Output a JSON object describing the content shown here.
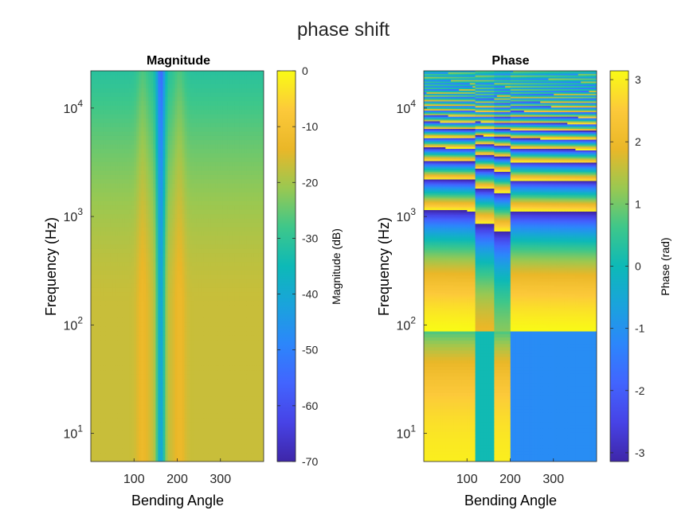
{
  "figure": {
    "title": "phase shift"
  },
  "chart_data": [
    {
      "type": "heatmap",
      "title": "Magnitude",
      "xlabel": "Bending Angle",
      "ylabel": "Frequency (Hz)",
      "x_ticks": [
        100,
        200,
        300
      ],
      "xlim": [
        0,
        400
      ],
      "y_scale": "log",
      "y_ticks": [
        {
          "base": "10",
          "exp": "1"
        },
        {
          "base": "10",
          "exp": "2"
        },
        {
          "base": "10",
          "exp": "3"
        },
        {
          "base": "10",
          "exp": "4"
        }
      ],
      "ylim": [
        5.5,
        22050
      ],
      "colorbar": {
        "label": "Magnitude (dB)",
        "range": [
          -70,
          0
        ],
        "ticks": [
          0,
          -10,
          -20,
          -30,
          -40,
          -50,
          -60,
          -70
        ]
      },
      "colormap": "parula",
      "features": {
        "notch_angles": [
          160
        ],
        "peak_angles": [
          120,
          200
        ],
        "description_level_db": {
          "background": -16,
          "notch_center": -42,
          "high_freq_floor": -33
        }
      }
    },
    {
      "type": "heatmap",
      "title": "Phase",
      "xlabel": "Bending Angle",
      "ylabel": "Frequency (Hz)",
      "x_ticks": [
        100,
        200,
        300
      ],
      "xlim": [
        0,
        400
      ],
      "y_scale": "log",
      "y_ticks": [
        {
          "base": "10",
          "exp": "1"
        },
        {
          "base": "10",
          "exp": "2"
        },
        {
          "base": "10",
          "exp": "3"
        },
        {
          "base": "10",
          "exp": "4"
        }
      ],
      "ylim": [
        5.5,
        22050
      ],
      "colorbar": {
        "label": "Phase (rad)",
        "range": [
          -3.1416,
          3.1416
        ],
        "ticks": [
          3,
          2,
          1,
          0,
          -1,
          -2,
          -3
        ]
      },
      "colormap": "parula",
      "features": {
        "band_edges_angle": [
          120,
          160,
          200
        ],
        "transition_freq_hz": 88,
        "low_freq_phase_left_rad": 3.1,
        "low_freq_phase_inner_rad": 0
      }
    }
  ]
}
